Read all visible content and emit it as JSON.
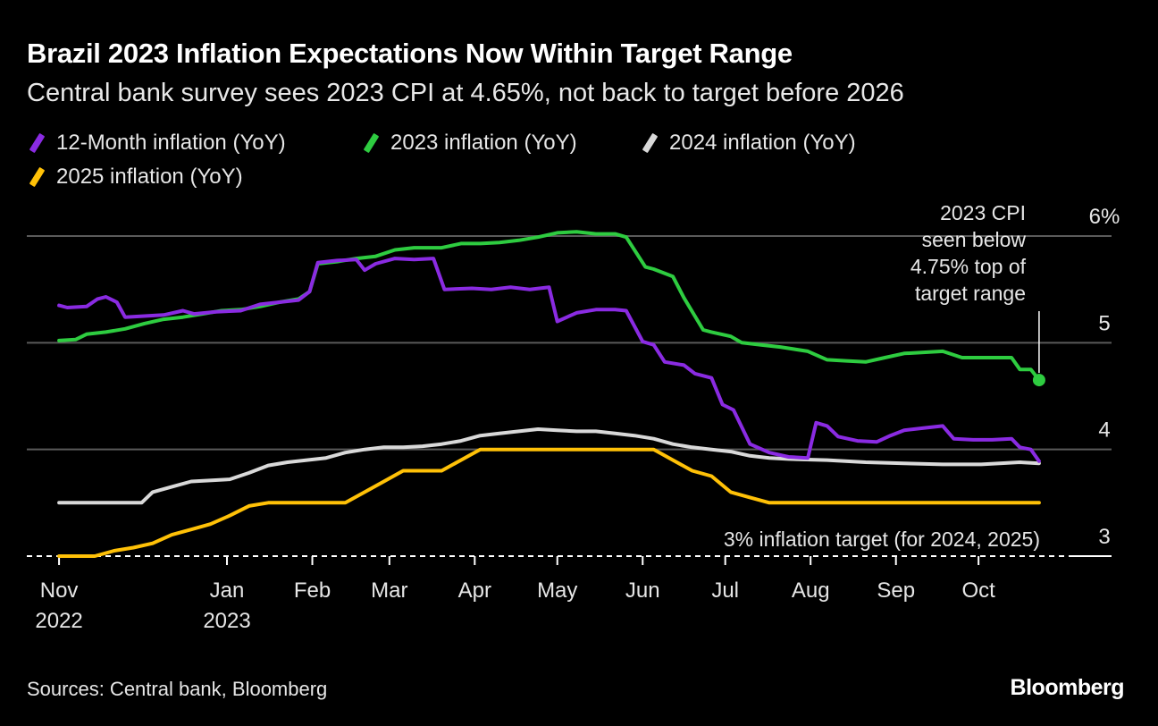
{
  "title": "Brazil 2023 Inflation Expectations Now Within Target Range",
  "subtitle": "Central bank survey sees 2023 CPI at 4.65%, not back to target before 2026",
  "source": "Sources: Central bank, Bloomberg",
  "brand": "Bloomberg",
  "chart_data": {
    "type": "line",
    "x_ticks": [
      {
        "date": "2022-11-01",
        "label": "Nov",
        "sub": "2022"
      },
      {
        "date": "2023-01-01",
        "label": "Jan",
        "sub": "2023"
      },
      {
        "date": "2023-02-01",
        "label": "Feb",
        "sub": ""
      },
      {
        "date": "2023-03-01",
        "label": "Mar",
        "sub": ""
      },
      {
        "date": "2023-04-01",
        "label": "Apr",
        "sub": ""
      },
      {
        "date": "2023-05-01",
        "label": "May",
        "sub": ""
      },
      {
        "date": "2023-06-01",
        "label": "Jun",
        "sub": ""
      },
      {
        "date": "2023-07-01",
        "label": "Jul",
        "sub": ""
      },
      {
        "date": "2023-08-01",
        "label": "Aug",
        "sub": ""
      },
      {
        "date": "2023-09-01",
        "label": "Sep",
        "sub": ""
      },
      {
        "date": "2023-10-01",
        "label": "Oct",
        "sub": ""
      }
    ],
    "y_ticks": [
      {
        "value": 3,
        "label": "3"
      },
      {
        "value": 4,
        "label": "4"
      },
      {
        "value": 5,
        "label": "5"
      },
      {
        "value": 6,
        "label": "6%"
      }
    ],
    "xlim": [
      "2022-10-31",
      "2023-10-24"
    ],
    "ylim": [
      3,
      6
    ],
    "grid": true,
    "legend_position": "top-left",
    "series": [
      {
        "name": "12-Month inflation (YoY)",
        "color": "#8a2be2",
        "points": [
          [
            "2022-11-01",
            5.35
          ],
          [
            "2022-11-04",
            5.33
          ],
          [
            "2022-11-11",
            5.34
          ],
          [
            "2022-11-15",
            5.41
          ],
          [
            "2022-11-18",
            5.43
          ],
          [
            "2022-11-22",
            5.38
          ],
          [
            "2022-11-25",
            5.24
          ],
          [
            "2022-12-02",
            5.25
          ],
          [
            "2022-12-09",
            5.26
          ],
          [
            "2022-12-16",
            5.3
          ],
          [
            "2022-12-20",
            5.27
          ],
          [
            "2022-12-28",
            5.29
          ],
          [
            "2023-01-06",
            5.3
          ],
          [
            "2023-01-13",
            5.36
          ],
          [
            "2023-01-20",
            5.38
          ],
          [
            "2023-01-27",
            5.4
          ],
          [
            "2023-01-31",
            5.48
          ],
          [
            "2023-02-03",
            5.75
          ],
          [
            "2023-02-10",
            5.77
          ],
          [
            "2023-02-17",
            5.78
          ],
          [
            "2023-02-20",
            5.68
          ],
          [
            "2023-02-24",
            5.74
          ],
          [
            "2023-03-03",
            5.79
          ],
          [
            "2023-03-10",
            5.78
          ],
          [
            "2023-03-17",
            5.79
          ],
          [
            "2023-03-21",
            5.5
          ],
          [
            "2023-03-31",
            5.51
          ],
          [
            "2023-04-07",
            5.5
          ],
          [
            "2023-04-14",
            5.52
          ],
          [
            "2023-04-21",
            5.5
          ],
          [
            "2023-04-28",
            5.52
          ],
          [
            "2023-05-01",
            5.2
          ],
          [
            "2023-05-08",
            5.28
          ],
          [
            "2023-05-15",
            5.31
          ],
          [
            "2023-05-22",
            5.31
          ],
          [
            "2023-05-26",
            5.3
          ],
          [
            "2023-06-01",
            5.01
          ],
          [
            "2023-06-05",
            4.98
          ],
          [
            "2023-06-09",
            4.82
          ],
          [
            "2023-06-16",
            4.79
          ],
          [
            "2023-06-20",
            4.71
          ],
          [
            "2023-06-26",
            4.67
          ],
          [
            "2023-06-30",
            4.42
          ],
          [
            "2023-07-04",
            4.37
          ],
          [
            "2023-07-10",
            4.05
          ],
          [
            "2023-07-17",
            3.97
          ],
          [
            "2023-07-24",
            3.93
          ],
          [
            "2023-07-31",
            3.92
          ],
          [
            "2023-08-03",
            4.25
          ],
          [
            "2023-08-07",
            4.22
          ],
          [
            "2023-08-11",
            4.12
          ],
          [
            "2023-08-18",
            4.08
          ],
          [
            "2023-08-25",
            4.07
          ],
          [
            "2023-08-30",
            4.13
          ],
          [
            "2023-09-04",
            4.18
          ],
          [
            "2023-09-11",
            4.2
          ],
          [
            "2023-09-18",
            4.22
          ],
          [
            "2023-09-22",
            4.1
          ],
          [
            "2023-09-29",
            4.09
          ],
          [
            "2023-10-06",
            4.09
          ],
          [
            "2023-10-13",
            4.1
          ],
          [
            "2023-10-16",
            4.02
          ],
          [
            "2023-10-20",
            4.0
          ],
          [
            "2023-10-23",
            3.89
          ]
        ]
      },
      {
        "name": "2023 inflation (YoY)",
        "color": "#2ecc40",
        "points": [
          [
            "2022-11-01",
            5.02
          ],
          [
            "2022-11-07",
            5.03
          ],
          [
            "2022-11-11",
            5.08
          ],
          [
            "2022-11-18",
            5.1
          ],
          [
            "2022-11-25",
            5.13
          ],
          [
            "2022-12-02",
            5.18
          ],
          [
            "2022-12-09",
            5.22
          ],
          [
            "2022-12-16",
            5.24
          ],
          [
            "2022-12-23",
            5.27
          ],
          [
            "2022-12-30",
            5.3
          ],
          [
            "2023-01-06",
            5.31
          ],
          [
            "2023-01-13",
            5.34
          ],
          [
            "2023-01-20",
            5.38
          ],
          [
            "2023-01-27",
            5.41
          ],
          [
            "2023-01-31",
            5.48
          ],
          [
            "2023-02-03",
            5.74
          ],
          [
            "2023-02-10",
            5.76
          ],
          [
            "2023-02-17",
            5.79
          ],
          [
            "2023-02-24",
            5.81
          ],
          [
            "2023-03-03",
            5.87
          ],
          [
            "2023-03-10",
            5.89
          ],
          [
            "2023-03-20",
            5.89
          ],
          [
            "2023-03-27",
            5.93
          ],
          [
            "2023-04-03",
            5.93
          ],
          [
            "2023-04-10",
            5.94
          ],
          [
            "2023-04-17",
            5.96
          ],
          [
            "2023-04-24",
            5.99
          ],
          [
            "2023-05-01",
            6.03
          ],
          [
            "2023-05-08",
            6.04
          ],
          [
            "2023-05-15",
            6.02
          ],
          [
            "2023-05-22",
            6.02
          ],
          [
            "2023-05-26",
            5.99
          ],
          [
            "2023-06-02",
            5.71
          ],
          [
            "2023-06-05",
            5.69
          ],
          [
            "2023-06-12",
            5.62
          ],
          [
            "2023-06-16",
            5.42
          ],
          [
            "2023-06-23",
            5.12
          ],
          [
            "2023-06-26",
            5.1
          ],
          [
            "2023-07-03",
            5.06
          ],
          [
            "2023-07-07",
            5.0
          ],
          [
            "2023-07-14",
            4.98
          ],
          [
            "2023-07-21",
            4.96
          ],
          [
            "2023-07-31",
            4.92
          ],
          [
            "2023-08-07",
            4.84
          ],
          [
            "2023-08-14",
            4.83
          ],
          [
            "2023-08-21",
            4.82
          ],
          [
            "2023-08-28",
            4.86
          ],
          [
            "2023-09-04",
            4.9
          ],
          [
            "2023-09-11",
            4.91
          ],
          [
            "2023-09-18",
            4.92
          ],
          [
            "2023-09-25",
            4.86
          ],
          [
            "2023-10-02",
            4.86
          ],
          [
            "2023-10-13",
            4.86
          ],
          [
            "2023-10-16",
            4.75
          ],
          [
            "2023-10-20",
            4.75
          ],
          [
            "2023-10-23",
            4.65
          ]
        ]
      },
      {
        "name": "2024 inflation (YoY)",
        "color": "#d9d9d9",
        "points": [
          [
            "2022-11-01",
            3.5
          ],
          [
            "2022-12-01",
            3.5
          ],
          [
            "2022-12-05",
            3.6
          ],
          [
            "2022-12-12",
            3.65
          ],
          [
            "2022-12-19",
            3.7
          ],
          [
            "2023-01-02",
            3.72
          ],
          [
            "2023-01-09",
            3.78
          ],
          [
            "2023-01-16",
            3.85
          ],
          [
            "2023-01-23",
            3.88
          ],
          [
            "2023-01-30",
            3.9
          ],
          [
            "2023-02-06",
            3.92
          ],
          [
            "2023-02-13",
            3.97
          ],
          [
            "2023-02-20",
            4.0
          ],
          [
            "2023-02-27",
            4.02
          ],
          [
            "2023-03-06",
            4.02
          ],
          [
            "2023-03-13",
            4.03
          ],
          [
            "2023-03-20",
            4.05
          ],
          [
            "2023-03-27",
            4.08
          ],
          [
            "2023-04-03",
            4.13
          ],
          [
            "2023-04-10",
            4.15
          ],
          [
            "2023-04-17",
            4.17
          ],
          [
            "2023-04-24",
            4.19
          ],
          [
            "2023-05-01",
            4.18
          ],
          [
            "2023-05-08",
            4.17
          ],
          [
            "2023-05-15",
            4.17
          ],
          [
            "2023-05-22",
            4.15
          ],
          [
            "2023-05-29",
            4.13
          ],
          [
            "2023-06-05",
            4.1
          ],
          [
            "2023-06-12",
            4.05
          ],
          [
            "2023-06-19",
            4.02
          ],
          [
            "2023-06-26",
            4.0
          ],
          [
            "2023-07-03",
            3.98
          ],
          [
            "2023-07-10",
            3.94
          ],
          [
            "2023-07-17",
            3.92
          ],
          [
            "2023-07-24",
            3.91
          ],
          [
            "2023-08-07",
            3.9
          ],
          [
            "2023-08-21",
            3.88
          ],
          [
            "2023-09-04",
            3.87
          ],
          [
            "2023-09-18",
            3.86
          ],
          [
            "2023-10-02",
            3.86
          ],
          [
            "2023-10-16",
            3.88
          ],
          [
            "2023-10-23",
            3.87
          ]
        ]
      },
      {
        "name": "2025 inflation (YoY)",
        "color": "#ffc107",
        "points": [
          [
            "2022-11-01",
            3.0
          ],
          [
            "2022-11-14",
            3.0
          ],
          [
            "2022-11-21",
            3.05
          ],
          [
            "2022-11-28",
            3.08
          ],
          [
            "2022-12-05",
            3.12
          ],
          [
            "2022-12-12",
            3.2
          ],
          [
            "2022-12-19",
            3.25
          ],
          [
            "2022-12-26",
            3.3
          ],
          [
            "2023-01-02",
            3.38
          ],
          [
            "2023-01-09",
            3.47
          ],
          [
            "2023-01-16",
            3.5
          ],
          [
            "2023-01-23",
            3.5
          ],
          [
            "2023-02-06",
            3.5
          ],
          [
            "2023-02-13",
            3.5
          ],
          [
            "2023-02-20",
            3.6
          ],
          [
            "2023-02-27",
            3.7
          ],
          [
            "2023-03-06",
            3.8
          ],
          [
            "2023-03-13",
            3.8
          ],
          [
            "2023-03-20",
            3.8
          ],
          [
            "2023-03-27",
            3.9
          ],
          [
            "2023-04-03",
            4.0
          ],
          [
            "2023-04-24",
            4.0
          ],
          [
            "2023-05-15",
            4.0
          ],
          [
            "2023-06-05",
            4.0
          ],
          [
            "2023-06-12",
            3.9
          ],
          [
            "2023-06-19",
            3.8
          ],
          [
            "2023-06-26",
            3.75
          ],
          [
            "2023-07-03",
            3.6
          ],
          [
            "2023-07-10",
            3.55
          ],
          [
            "2023-07-17",
            3.5
          ],
          [
            "2023-07-31",
            3.5
          ],
          [
            "2023-08-21",
            3.5
          ],
          [
            "2023-09-18",
            3.5
          ],
          [
            "2023-10-23",
            3.5
          ]
        ]
      }
    ],
    "reference_line": {
      "value": 3,
      "label": "3% inflation target (for 2024, 2025)"
    },
    "end_marker": {
      "series": "2023 inflation (YoY)",
      "date": "2023-10-23",
      "value": 4.65
    },
    "annotation": [
      "2023 CPI",
      "seen below",
      "4.75% top of",
      "target range"
    ]
  }
}
